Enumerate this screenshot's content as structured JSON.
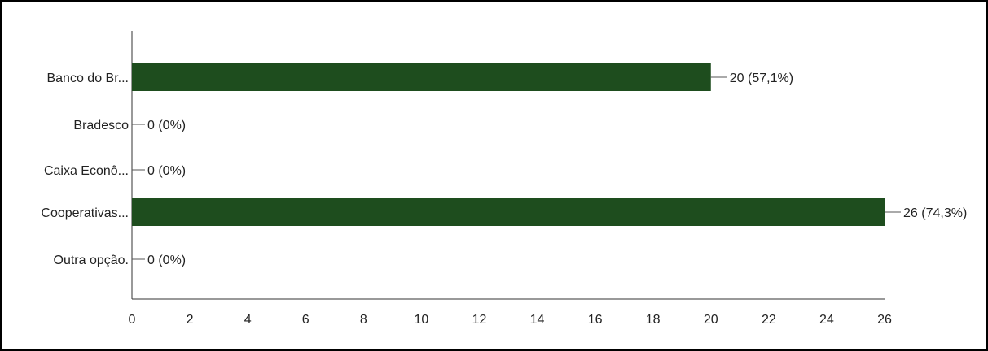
{
  "chart_data": {
    "type": "bar",
    "orientation": "horizontal",
    "categories": [
      "Banco do Br...",
      "Bradesco",
      "Caixa Econô...",
      "Cooperativas...",
      "Outra opção."
    ],
    "values": [
      20,
      0,
      0,
      26,
      0
    ],
    "data_labels": [
      "20 (57,1%)",
      "0 (0%)",
      "0 (0%)",
      "26 (74,3%)",
      "0 (0%)"
    ],
    "x_ticks": [
      "0",
      "2",
      "4",
      "6",
      "8",
      "10",
      "12",
      "14",
      "16",
      "18",
      "20",
      "22",
      "24",
      "26"
    ],
    "xlim": [
      0,
      26
    ],
    "bar_color": "#1e4d1e",
    "grid": false,
    "legend": "none"
  }
}
